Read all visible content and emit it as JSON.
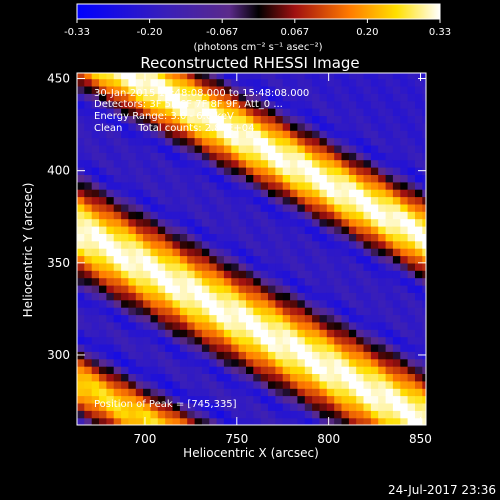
{
  "chart_data": {
    "type": "heatmap",
    "title": "Reconstructed RHESSI Image",
    "xlabel": "Heliocentric X (arcsec)",
    "ylabel": "Heliocentric Y (arcsec)",
    "xlim": [
      663,
      853
    ],
    "ylim": [
      262,
      453
    ],
    "x_ticks": [
      700,
      750,
      800,
      850
    ],
    "y_ticks": [
      300,
      350,
      400,
      450
    ],
    "colorbar": {
      "min": -0.33,
      "max": 0.33,
      "ticks": [
        "-0.33",
        "-0.20",
        "-0.067",
        "0.067",
        "0.20",
        "0.33"
      ],
      "unit_label": "(photons cm⁻² s⁻¹ asec⁻²)"
    },
    "annotations": {
      "time_range": "30-Jan-2015 15:48:08.000 to 15:48:08.000",
      "detectors": "Detectors: 3F 5F 6F 7F 8F 9F, Att_0 ...",
      "energy": "Energy Range: 3.0 - 6.0 keV",
      "method_counts": "Clean     Total counts: 2.84E+04",
      "peak": "Position of Peak = [745,335]"
    },
    "peak_position": [
      745,
      335
    ],
    "bands_description_hidden": false,
    "band_centers_y_at_x700": [
      445,
      345,
      262
    ],
    "band_slope": -0.55,
    "band_widths": [
      22,
      26,
      18
    ],
    "band_peaks": [
      0.33,
      0.33,
      0.25
    ],
    "background_level": -0.2
  },
  "footer": {
    "date": "24-Jul-2017 23:36"
  },
  "colors": {
    "background": "#000000",
    "text": "#ffffff"
  }
}
